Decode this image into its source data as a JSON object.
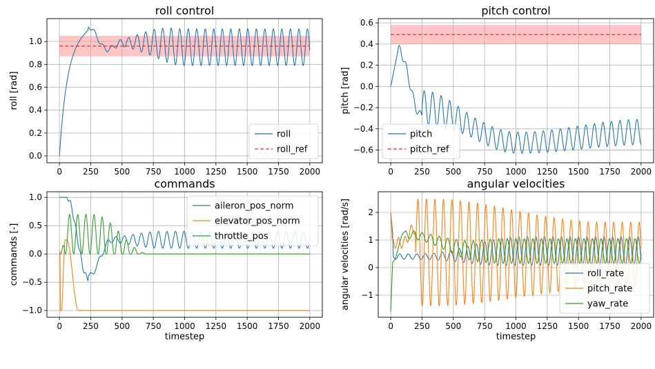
{
  "chart_data": [
    {
      "type": "line",
      "title": "roll control",
      "xlabel": "",
      "ylabel": "roll [rad]",
      "xlim": [
        -100,
        2100
      ],
      "ylim": [
        -0.06,
        1.2
      ],
      "xticks": [
        0,
        250,
        500,
        750,
        1000,
        1250,
        1500,
        1750,
        2000
      ],
      "yticks": [
        0.0,
        0.2,
        0.4,
        0.6,
        0.8,
        1.0
      ],
      "ytick_labels": [
        "0.0",
        "0.2",
        "0.4",
        "0.6",
        "0.8",
        "1.0"
      ],
      "grid": true,
      "legend_position": "lower right",
      "band": {
        "from": 0.87,
        "to": 1.05,
        "color": "#ffc4c4"
      },
      "series": [
        {
          "name": "roll",
          "color": "#1f77b4",
          "style": "solid",
          "kind": "roll"
        },
        {
          "name": "roll_ref",
          "color": "#d62728",
          "style": "dashed",
          "kind": "const",
          "value": 0.96
        }
      ]
    },
    {
      "type": "line",
      "title": "pitch control",
      "xlabel": "",
      "ylabel": "pitch [rad]",
      "xlim": [
        -100,
        2100
      ],
      "ylim": [
        -0.72,
        0.64
      ],
      "xticks": [
        0,
        250,
        500,
        750,
        1000,
        1250,
        1500,
        1750,
        2000
      ],
      "yticks": [
        -0.6,
        -0.4,
        -0.2,
        0.0,
        0.2,
        0.4,
        0.6
      ],
      "ytick_labels": [
        "−0.6",
        "−0.4",
        "−0.2",
        "0.0",
        "0.2",
        "0.4",
        "0.6"
      ],
      "grid": true,
      "legend_position": "lower left",
      "band": {
        "from": 0.4,
        "to": 0.58,
        "color": "#ffc4c4"
      },
      "series": [
        {
          "name": "pitch",
          "color": "#1f77b4",
          "style": "solid",
          "kind": "pitch"
        },
        {
          "name": "pitch_ref",
          "color": "#d62728",
          "style": "dashed",
          "kind": "const",
          "value": 0.49
        }
      ]
    },
    {
      "type": "line",
      "title": "commands",
      "xlabel": "timestep",
      "ylabel": "commands [-]",
      "xlim": [
        -100,
        2100
      ],
      "ylim": [
        -1.12,
        1.1
      ],
      "xticks": [
        0,
        250,
        500,
        750,
        1000,
        1250,
        1500,
        1750,
        2000
      ],
      "yticks": [
        -1.0,
        -0.5,
        0.0,
        0.5,
        1.0
      ],
      "ytick_labels": [
        "−1.0",
        "−0.5",
        "0.0",
        "0.5",
        "1.0"
      ],
      "grid": true,
      "legend_position": "upper right",
      "series": [
        {
          "name": "aileron_pos_norm",
          "color": "#1f77b4",
          "style": "solid",
          "kind": "aileron"
        },
        {
          "name": "elevator_pos_norm",
          "color": "#ff7f0e",
          "style": "solid",
          "kind": "elevator"
        },
        {
          "name": "throttle_pos",
          "color": "#2ca02c",
          "style": "solid",
          "kind": "throttle"
        }
      ]
    },
    {
      "type": "line",
      "title": "angular velocities",
      "xlabel": "timestep",
      "ylabel": "angular velocities [rad/s]",
      "xlim": [
        -100,
        2100
      ],
      "ylim": [
        -1.8,
        2.75
      ],
      "xticks": [
        0,
        250,
        500,
        750,
        1000,
        1250,
        1500,
        1750,
        2000
      ],
      "yticks": [
        -1,
        0,
        1,
        2
      ],
      "ytick_labels": [
        "−1",
        "0",
        "1",
        "2"
      ],
      "grid": true,
      "legend_position": "lower right",
      "series": [
        {
          "name": "roll_rate",
          "color": "#1f77b4",
          "style": "solid",
          "kind": "roll_rate"
        },
        {
          "name": "pitch_rate",
          "color": "#ff7f0e",
          "style": "solid",
          "kind": "pitch_rate"
        },
        {
          "name": "yaw_rate",
          "color": "#2ca02c",
          "style": "solid",
          "kind": "yaw_rate"
        }
      ]
    }
  ]
}
